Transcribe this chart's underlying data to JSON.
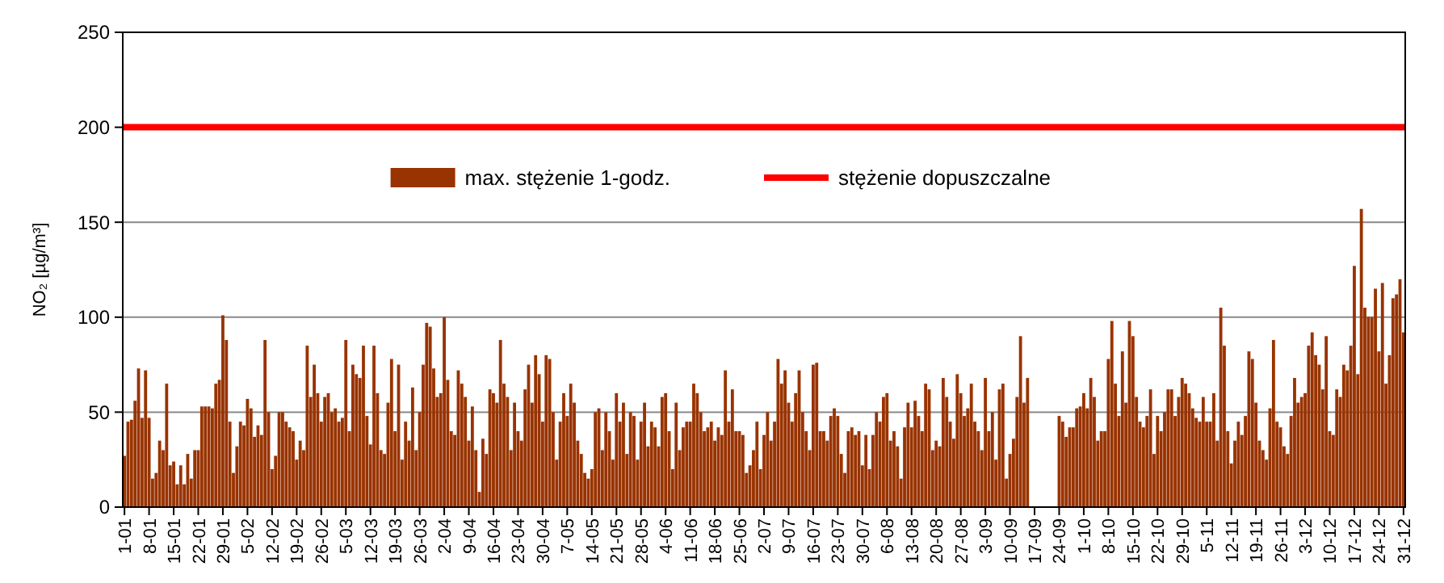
{
  "chart_data": {
    "type": "bar",
    "ylabel": "NO₂ [µg/m³]",
    "ylim": [
      0,
      250
    ],
    "yticks": [
      0,
      50,
      100,
      150,
      200,
      250
    ],
    "grid": "y",
    "legend": "top",
    "categories": [
      "1-01",
      null,
      null,
      null,
      null,
      null,
      null,
      "8-01",
      null,
      null,
      null,
      null,
      null,
      null,
      "15-01",
      null,
      null,
      null,
      null,
      null,
      null,
      "22-01",
      null,
      null,
      null,
      null,
      null,
      null,
      "29-01",
      null,
      null,
      null,
      null,
      null,
      null,
      "5-02",
      null,
      null,
      null,
      null,
      null,
      null,
      "12-02",
      null,
      null,
      null,
      null,
      null,
      null,
      "19-02",
      null,
      null,
      null,
      null,
      null,
      null,
      "26-02",
      null,
      null,
      null,
      null,
      null,
      null,
      "5-03",
      null,
      null,
      null,
      null,
      null,
      null,
      "12-03",
      null,
      null,
      null,
      null,
      null,
      null,
      "19-03",
      null,
      null,
      null,
      null,
      null,
      null,
      "26-03",
      null,
      null,
      null,
      null,
      null,
      null,
      "2-04",
      null,
      null,
      null,
      null,
      null,
      null,
      "9-04",
      null,
      null,
      null,
      null,
      null,
      null,
      "16-04",
      null,
      null,
      null,
      null,
      null,
      null,
      "23-04",
      null,
      null,
      null,
      null,
      null,
      null,
      "30-04",
      null,
      null,
      null,
      null,
      null,
      null,
      "7-05",
      null,
      null,
      null,
      null,
      null,
      null,
      "14-05",
      null,
      null,
      null,
      null,
      null,
      null,
      "21-05",
      null,
      null,
      null,
      null,
      null,
      null,
      "28-05",
      null,
      null,
      null,
      null,
      null,
      null,
      "4-06",
      null,
      null,
      null,
      null,
      null,
      null,
      "11-06",
      null,
      null,
      null,
      null,
      null,
      null,
      "18-06",
      null,
      null,
      null,
      null,
      null,
      null,
      "25-06",
      null,
      null,
      null,
      null,
      null,
      null,
      "2-07",
      null,
      null,
      null,
      null,
      null,
      null,
      "9-07",
      null,
      null,
      null,
      null,
      null,
      null,
      "16-07",
      null,
      null,
      null,
      null,
      null,
      null,
      "23-07",
      null,
      null,
      null,
      null,
      null,
      null,
      "30-07",
      null,
      null,
      null,
      null,
      null,
      null,
      "6-08",
      null,
      null,
      null,
      null,
      null,
      null,
      "13-08",
      null,
      null,
      null,
      null,
      null,
      null,
      "20-08",
      null,
      null,
      null,
      null,
      null,
      null,
      "27-08",
      null,
      null,
      null,
      null,
      null,
      null,
      "3-09",
      null,
      null,
      null,
      null,
      null,
      null,
      "10-09",
      null,
      null,
      null,
      null,
      null,
      null,
      "17-09",
      null,
      null,
      null,
      null,
      null,
      null,
      "24-09",
      null,
      null,
      null,
      null,
      null,
      null,
      "1-10",
      null,
      null,
      null,
      null,
      null,
      null,
      "8-10",
      null,
      null,
      null,
      null,
      null,
      null,
      "15-10",
      null,
      null,
      null,
      null,
      null,
      null,
      "22-10",
      null,
      null,
      null,
      null,
      null,
      null,
      "29-10",
      null,
      null,
      null,
      null,
      null,
      null,
      "5-11",
      null,
      null,
      null,
      null,
      null,
      null,
      "12-11",
      null,
      null,
      null,
      null,
      null,
      null,
      "19-11",
      null,
      null,
      null,
      null,
      null,
      null,
      "26-11",
      null,
      null,
      null,
      null,
      null,
      null,
      "3-12",
      null,
      null,
      null,
      null,
      null,
      null,
      "10-12",
      null,
      null,
      null,
      null,
      null,
      null,
      "17-12",
      null,
      null,
      null,
      null,
      null,
      null,
      "24-12",
      null,
      null,
      null,
      null,
      null,
      null,
      "31-12"
    ],
    "series": [
      {
        "name": "max. stężenie 1-godz.",
        "color": "#993300",
        "values": [
          27,
          45,
          46,
          56,
          73,
          47,
          72,
          47,
          15,
          18,
          35,
          30,
          65,
          22,
          24,
          12,
          22,
          12,
          28,
          15,
          30,
          30,
          53,
          53,
          53,
          52,
          65,
          67,
          101,
          88,
          45,
          18,
          32,
          45,
          43,
          57,
          52,
          37,
          43,
          38,
          88,
          50,
          20,
          27,
          50,
          50,
          45,
          42,
          40,
          25,
          35,
          30,
          85,
          58,
          75,
          60,
          45,
          58,
          60,
          50,
          52,
          45,
          47,
          88,
          40,
          75,
          70,
          68,
          85,
          48,
          33,
          85,
          60,
          30,
          28,
          55,
          78,
          40,
          75,
          25,
          45,
          35,
          63,
          30,
          50,
          75,
          97,
          95,
          73,
          58,
          60,
          100,
          67,
          40,
          38,
          72,
          65,
          58,
          35,
          53,
          30,
          8,
          36,
          28,
          62,
          60,
          55,
          88,
          65,
          58,
          30,
          55,
          40,
          35,
          62,
          75,
          55,
          80,
          70,
          45,
          80,
          78,
          50,
          25,
          45,
          60,
          48,
          65,
          55,
          35,
          28,
          18,
          15,
          20,
          50,
          52,
          30,
          50,
          40,
          25,
          60,
          45,
          55,
          28,
          50,
          48,
          25,
          45,
          55,
          32,
          45,
          42,
          32,
          58,
          60,
          40,
          20,
          55,
          30,
          42,
          45,
          45,
          65,
          60,
          50,
          40,
          42,
          45,
          35,
          42,
          38,
          72,
          45,
          62,
          40,
          40,
          38,
          18,
          22,
          30,
          45,
          20,
          38,
          50,
          35,
          45,
          78,
          65,
          72,
          55,
          45,
          60,
          72,
          50,
          40,
          30,
          75,
          76,
          40,
          40,
          35,
          48,
          52,
          48,
          28,
          18,
          40,
          42,
          38,
          40,
          22,
          38,
          20,
          38,
          50,
          45,
          58,
          60,
          35,
          40,
          32,
          15,
          42,
          55,
          42,
          56,
          48,
          40,
          65,
          62,
          30,
          35,
          32,
          68,
          58,
          45,
          36,
          70,
          60,
          48,
          52,
          65,
          45,
          40,
          30,
          68,
          40,
          50,
          25,
          62,
          65,
          15,
          28,
          36,
          58,
          90,
          55,
          68,
          null,
          null,
          null,
          null,
          null,
          null,
          null,
          null,
          48,
          45,
          37,
          42,
          42,
          52,
          53,
          60,
          52,
          68,
          58,
          35,
          40,
          40,
          78,
          98,
          65,
          48,
          82,
          55,
          98,
          90,
          58,
          45,
          42,
          48,
          62,
          28,
          48,
          40,
          50,
          62,
          62,
          48,
          58,
          68,
          65,
          60,
          52,
          47,
          45,
          58,
          45,
          45,
          60,
          35,
          105,
          85,
          40,
          23,
          35,
          45,
          38,
          48,
          82,
          78,
          55,
          35,
          30,
          25,
          52,
          88,
          45,
          42,
          32,
          28,
          48,
          68,
          55,
          58,
          60,
          85,
          92,
          80,
          75,
          62,
          90,
          40,
          38,
          62,
          58,
          75,
          72,
          85,
          127,
          70,
          157,
          105,
          100,
          100,
          115,
          82,
          118,
          65,
          80,
          110,
          112,
          120,
          92
        ]
      }
    ],
    "ref_lines": [
      {
        "axis": "y",
        "value": 200,
        "label": "stężenie dopuszczalne",
        "color": "#ff0000"
      }
    ]
  }
}
